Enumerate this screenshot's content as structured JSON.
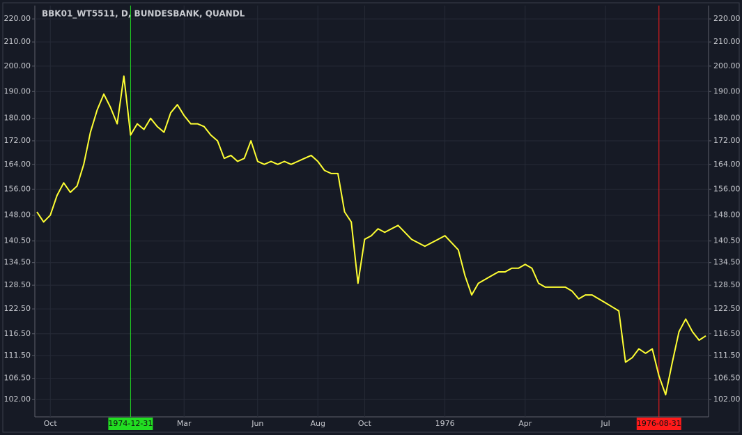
{
  "chart_data": {
    "type": "line",
    "title": "BBK01_WT5511, D, BUNDESBANK, QUANDL",
    "categories": [
      null,
      null,
      "Oct",
      null,
      null,
      null,
      null,
      null,
      null,
      null,
      null,
      null,
      null,
      null,
      "1974-12-31",
      null,
      null,
      null,
      null,
      null,
      null,
      null,
      "Mar",
      null,
      null,
      null,
      null,
      null,
      null,
      null,
      null,
      null,
      null,
      "Jun",
      null,
      null,
      null,
      null,
      null,
      null,
      null,
      null,
      "Aug",
      null,
      null,
      null,
      null,
      null,
      null,
      "Oct",
      null,
      null,
      null,
      null,
      null,
      null,
      null,
      null,
      null,
      null,
      null,
      "1976",
      null,
      null,
      null,
      null,
      null,
      null,
      null,
      null,
      null,
      null,
      null,
      "Apr",
      null,
      null,
      null,
      null,
      null,
      null,
      null,
      null,
      null,
      null,
      null,
      "Jul",
      null,
      null,
      null,
      null,
      null,
      null,
      null,
      "1976-08-31",
      null,
      null,
      null,
      null,
      null,
      null,
      null
    ],
    "series": [
      {
        "color": "#ffff33",
        "values": [
          149,
          146,
          148,
          154,
          158,
          155,
          157,
          164,
          175,
          183,
          189,
          184,
          178,
          196,
          174,
          178,
          176,
          180,
          177,
          175,
          182,
          185,
          181,
          178,
          178,
          177,
          174,
          172,
          166,
          167,
          165,
          166,
          172,
          165,
          164,
          165,
          164,
          165,
          164,
          165,
          166,
          167,
          165,
          162,
          161,
          161,
          149,
          146,
          129,
          141,
          142,
          144,
          143,
          144,
          145,
          143,
          141,
          140,
          139,
          140,
          141,
          142,
          140,
          138,
          131,
          126,
          129,
          130,
          131,
          132,
          132,
          133,
          133,
          134,
          133,
          129,
          128,
          128,
          128,
          128,
          127,
          125,
          126,
          126,
          125,
          124,
          123,
          122,
          110,
          111,
          113,
          112,
          113,
          107,
          103,
          110,
          117,
          120,
          117,
          115,
          116
        ]
      }
    ],
    "highlights": [
      {
        "category_index": 14,
        "color": "#22dd22"
      },
      {
        "category_index": 93,
        "color": "#ff1a1a"
      }
    ],
    "log_scale": true,
    "ylim": [
      98.5,
      226
    ],
    "yticks": [
      {
        "value": 102,
        "label": "102.00"
      },
      {
        "value": 106.5,
        "label": "106.50"
      },
      {
        "value": 111.5,
        "label": "111.50"
      },
      {
        "value": 116.5,
        "label": "116.50"
      },
      {
        "value": 122.5,
        "label": "122.50"
      },
      {
        "value": 128.5,
        "label": "128.50"
      },
      {
        "value": 134.5,
        "label": "134.50"
      },
      {
        "value": 140.5,
        "label": "140.50"
      },
      {
        "value": 148,
        "label": "148.00"
      },
      {
        "value": 156,
        "label": "156.00"
      },
      {
        "value": 164,
        "label": "164.00"
      },
      {
        "value": 172,
        "label": "172.00"
      },
      {
        "value": 180,
        "label": "180.00"
      },
      {
        "value": 190,
        "label": "190.00"
      },
      {
        "value": 200,
        "label": "200.00"
      },
      {
        "value": 210,
        "label": "210.00"
      },
      {
        "value": 220,
        "label": "220.00"
      }
    ],
    "grid": true
  }
}
